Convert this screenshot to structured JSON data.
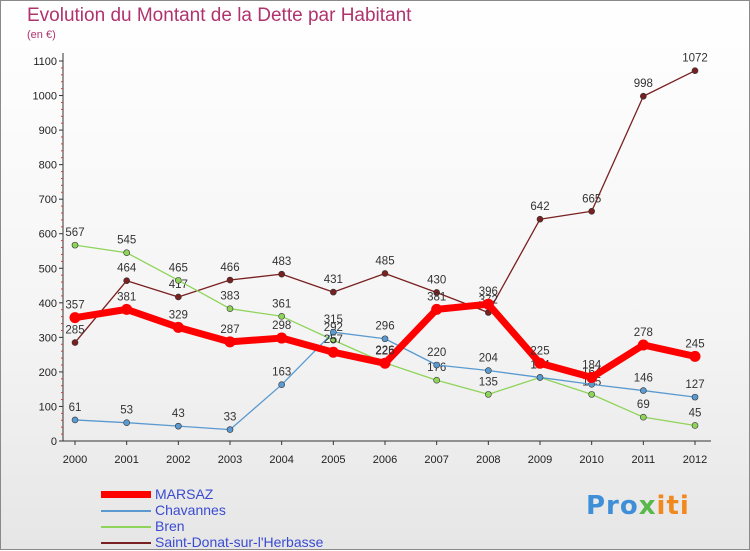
{
  "title": "Evolution du Montant de la Dette par Habitant",
  "unit": "(en €)",
  "brand": {
    "p1": "Pro",
    "p2": "x",
    "p3": "iti"
  },
  "chart_data": {
    "type": "line",
    "title": "Evolution du Montant de la Dette par Habitant",
    "ylabel": "(en €)",
    "xlabel": "",
    "x": [
      2000,
      2001,
      2002,
      2003,
      2004,
      2005,
      2006,
      2007,
      2008,
      2009,
      2010,
      2011,
      2012
    ],
    "ylim": [
      0,
      1100
    ],
    "yticks": [
      0,
      100,
      200,
      300,
      400,
      500,
      600,
      700,
      800,
      900,
      1000,
      1100
    ],
    "grid": false,
    "legend": "bottom-left",
    "series": [
      {
        "name": "Saint-Donat-sur-l'Herbasse",
        "color": "#7a2020",
        "values": [
          285,
          464,
          417,
          466,
          483,
          431,
          485,
          430,
          372,
          642,
          665,
          998,
          1072
        ]
      },
      {
        "name": "Bren",
        "color": "#8fd45a",
        "values": [
          567,
          545,
          465,
          383,
          361,
          292,
          226,
          176,
          135,
          184,
          135,
          69,
          45
        ]
      },
      {
        "name": "Chavannes",
        "color": "#5a9ad0",
        "values": [
          61,
          53,
          43,
          33,
          163,
          315,
          296,
          220,
          204,
          184,
          164,
          146,
          127
        ]
      },
      {
        "name": "MARSAZ",
        "color": "#ff0000",
        "values": [
          357,
          381,
          329,
          287,
          298,
          257,
          225,
          381,
          396,
          225,
          184,
          278,
          245
        ]
      }
    ],
    "legend_order": [
      "MARSAZ",
      "Chavannes",
      "Bren",
      "Saint-Donat-sur-l'Herbasse"
    ]
  }
}
